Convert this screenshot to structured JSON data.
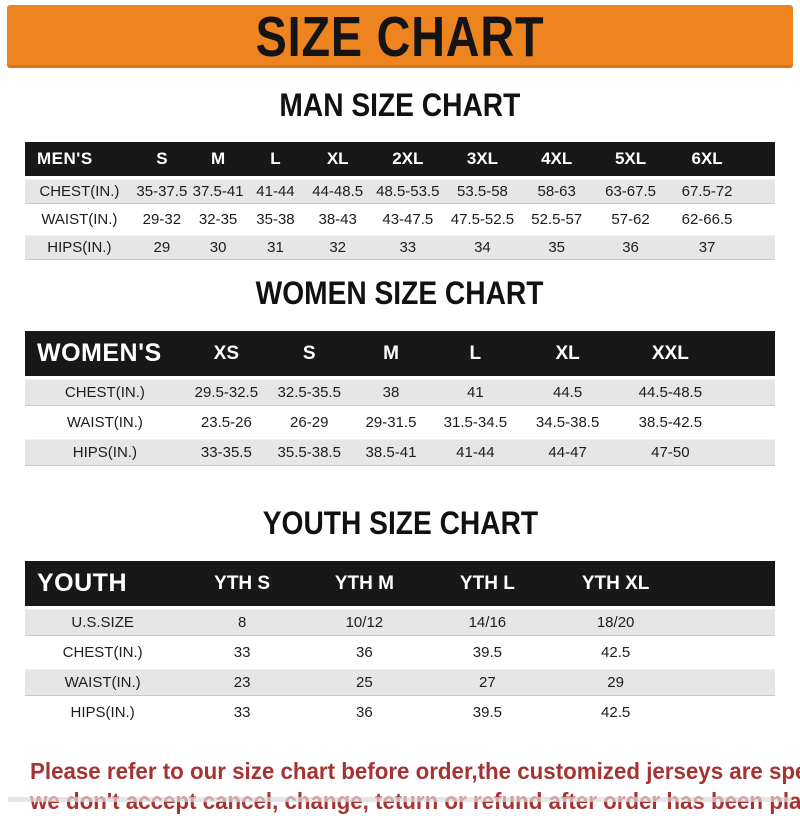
{
  "banner": {
    "title": "SIZE CHART"
  },
  "colors": {
    "banner_bg": "#ED8420",
    "bar_bg": "#181818",
    "row_shade": "#E6E6E6",
    "footer_red": "#A63331"
  },
  "sections": [
    {
      "id": "men",
      "heading": "MAN SIZE CHART",
      "table": {
        "label": "MEN'S",
        "columns": [
          "S",
          "M",
          "L",
          "XL",
          "2XL",
          "3XL",
          "4XL",
          "5XL",
          "6XL"
        ],
        "rows": [
          {
            "label": "CHEST(IN.)",
            "values": [
              "35-37.5",
              "37.5-41",
              "41-44",
              "44-48.5",
              "48.5-53.5",
              "53.5-58",
              "58-63",
              "63-67.5",
              "67.5-72"
            ]
          },
          {
            "label": "WAIST(IN.)",
            "values": [
              "29-32",
              "32-35",
              "35-38",
              "38-43",
              "43-47.5",
              "47.5-52.5",
              "52.5-57",
              "57-62",
              "62-66.5"
            ]
          },
          {
            "label": "HIPS(IN.)",
            "values": [
              "29",
              "30",
              "31",
              "32",
              "33",
              "34",
              "35",
              "36",
              "37"
            ]
          }
        ]
      }
    },
    {
      "id": "women",
      "heading": "WOMEN SIZE CHART",
      "table": {
        "label": "WOMEN'S",
        "columns": [
          "XS",
          "S",
          "M",
          "L",
          "XL",
          "XXL"
        ],
        "rows": [
          {
            "label": "CHEST(IN.)",
            "values": [
              "29.5-32.5",
              "32.5-35.5",
              "38",
              "41",
              "44.5",
              "44.5-48.5"
            ]
          },
          {
            "label": "WAIST(IN.)",
            "values": [
              "23.5-26",
              "26-29",
              "29-31.5",
              "31.5-34.5",
              "34.5-38.5",
              "38.5-42.5"
            ]
          },
          {
            "label": "HIPS(IN.)",
            "values": [
              "33-35.5",
              "35.5-38.5",
              "38.5-41",
              "41-44",
              "44-47",
              "47-50"
            ]
          }
        ]
      }
    },
    {
      "id": "youth",
      "heading": "YOUTH SIZE CHART",
      "table": {
        "label": "YOUTH",
        "columns": [
          "YTH S",
          "YTH M",
          "YTH L",
          "YTH XL"
        ],
        "rows": [
          {
            "label": "U.S.SIZE",
            "values": [
              "8",
              "10/12",
              "14/16",
              "18/20"
            ]
          },
          {
            "label": "CHEST(IN.)",
            "values": [
              "33",
              "36",
              "39.5",
              "42.5"
            ]
          },
          {
            "label": "WAIST(IN.)",
            "values": [
              "23",
              "25",
              "27",
              "29"
            ]
          },
          {
            "label": "HIPS(IN.)",
            "values": [
              "33",
              "36",
              "39.5",
              "42.5"
            ]
          }
        ]
      }
    }
  ],
  "footer": {
    "lines": [
      "Please refer to our size chart before order,the customized jerseys are special products,",
      "we don't accept cancel, change, teturn or refund after order has been placed!"
    ]
  }
}
